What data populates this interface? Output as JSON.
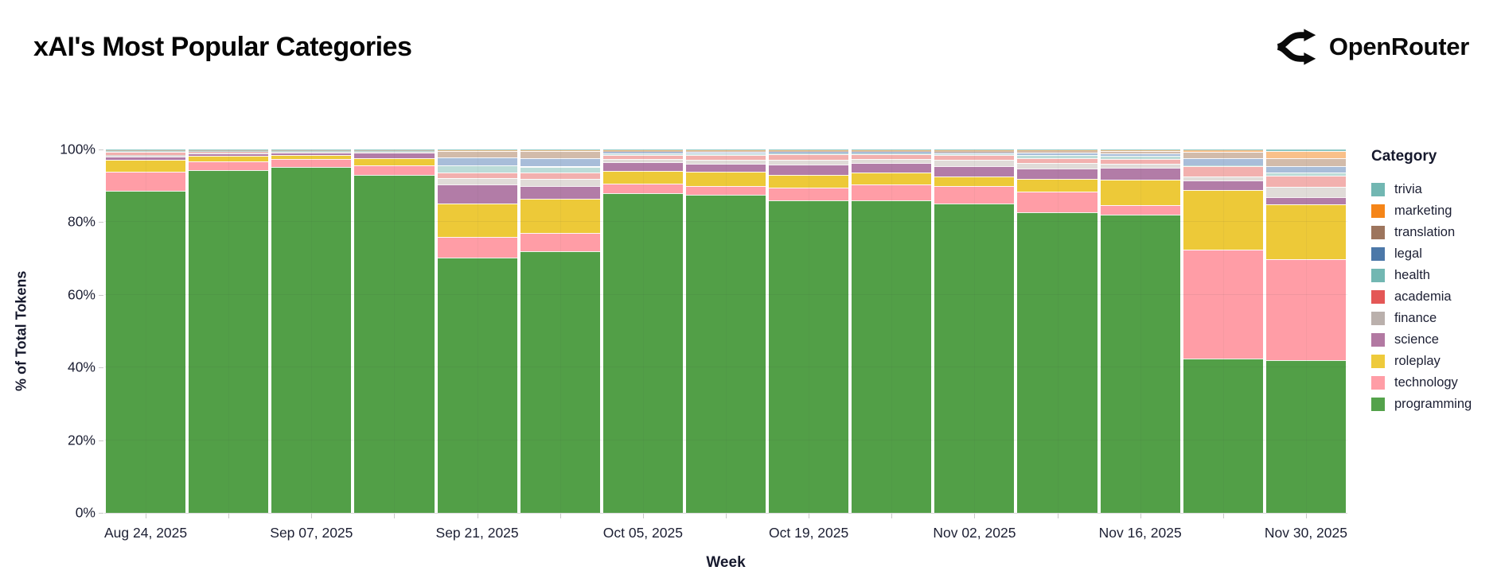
{
  "page": {
    "background": "#ffffff"
  },
  "header": {
    "title": "xAI's Most Popular Categories",
    "brand": {
      "name": "OpenRouter",
      "icon": "openrouter-logo-icon",
      "color": "#0a0a0a"
    }
  },
  "chart_data": {
    "type": "bar",
    "variant": "stacked-100-percent",
    "title": "xAI's Most Popular Categories",
    "xlabel": "Week",
    "ylabel": "% of Total Tokens",
    "ylim": [
      0,
      100
    ],
    "grid": "faint horizontal lines at 20% steps, faint vertical line at each bar center",
    "y_tick_labels": [
      "0%",
      "20%",
      "40%",
      "60%",
      "80%",
      "100%"
    ],
    "x_tick_labels": [
      "Aug 24, 2025",
      "Sep 07, 2025",
      "Sep 21, 2025",
      "Oct 05, 2025",
      "Oct 19, 2025",
      "Nov 02, 2025",
      "Nov 16, 2025",
      "Nov 30, 2025"
    ],
    "weeks": [
      "Aug 24, 2025",
      "Aug 31, 2025",
      "Sep 07, 2025",
      "Sep 14, 2025",
      "Sep 21, 2025",
      "Sep 28, 2025",
      "Oct 05, 2025",
      "Oct 12, 2025",
      "Oct 19, 2025",
      "Oct 26, 2025",
      "Nov 02, 2025",
      "Nov 09, 2025",
      "Nov 16, 2025",
      "Nov 23, 2025",
      "Nov 30, 2025"
    ],
    "legend": {
      "title": "Category",
      "position": "right",
      "items": [
        {
          "label": "trivia",
          "color": "#72b7b2"
        },
        {
          "label": "marketing",
          "color": "#f58518"
        },
        {
          "label": "translation",
          "color": "#9d755d"
        },
        {
          "label": "legal",
          "color": "#4c78a8"
        },
        {
          "label": "health",
          "color": "#72b7b2"
        },
        {
          "label": "academia",
          "color": "#e45756"
        },
        {
          "label": "finance",
          "color": "#bab0ac"
        },
        {
          "label": "science",
          "color": "#b279a2"
        },
        {
          "label": "roleplay",
          "color": "#eeca3b"
        },
        {
          "label": "technology",
          "color": "#ff9da6"
        },
        {
          "label": "programming",
          "color": "#54a24b"
        }
      ]
    },
    "stack_order_bottom_to_top": [
      "programming",
      "technology",
      "roleplay",
      "science",
      "finance",
      "academia",
      "health",
      "legal",
      "translation",
      "marketing",
      "trivia"
    ],
    "series": [
      {
        "name": "programming",
        "bar_color": "#529f47",
        "values": [
          88.7,
          94.4,
          95.1,
          93.0,
          70.2,
          72.0,
          88.0,
          87.5,
          86.0,
          85.9,
          85.1,
          82.8,
          82.0,
          42.4,
          42.0
        ]
      },
      {
        "name": "technology",
        "bar_color": "#ff9da6",
        "values": [
          5.2,
          2.3,
          2.3,
          2.7,
          5.8,
          5.0,
          2.6,
          2.5,
          3.4,
          4.5,
          4.8,
          5.7,
          2.7,
          30.0,
          27.8
        ]
      },
      {
        "name": "roleplay",
        "bar_color": "#edc938",
        "values": [
          3.2,
          1.6,
          1.1,
          1.8,
          9.2,
          9.5,
          3.6,
          3.8,
          3.7,
          3.2,
          2.7,
          3.4,
          7.0,
          16.4,
          15.1
        ]
      },
      {
        "name": "science",
        "bar_color": "#b27ca7",
        "values": [
          0.9,
          0.7,
          0.6,
          1.6,
          5.2,
          3.4,
          2.2,
          2.3,
          2.7,
          2.7,
          2.9,
          2.9,
          3.2,
          2.6,
          2.0
        ]
      },
      {
        "name": "finance",
        "bar_color": "#e0dbd8",
        "values": [
          0.4,
          0.2,
          0.2,
          0.2,
          1.7,
          2.0,
          0.9,
          1.0,
          1.3,
          1.0,
          1.7,
          1.5,
          1.1,
          1.2,
          2.9
        ]
      },
      {
        "name": "academia",
        "bar_color": "#f2b0ae",
        "values": [
          1.0,
          0.3,
          0.2,
          0.2,
          1.6,
          1.8,
          1.2,
          1.3,
          1.5,
          1.3,
          1.3,
          1.3,
          1.4,
          2.8,
          3.0
        ]
      },
      {
        "name": "health",
        "bar_color": "#bcdcd8",
        "values": [
          0.2,
          0.1,
          0.1,
          0.1,
          1.9,
          1.6,
          0.5,
          0.5,
          0.4,
          0.4,
          0.3,
          0.8,
          0.9,
          0.3,
          0.9
        ]
      },
      {
        "name": "legal",
        "bar_color": "#a8bdd9",
        "values": [
          0.1,
          0.1,
          0.1,
          0.1,
          2.3,
          2.2,
          0.4,
          0.5,
          0.4,
          0.4,
          0.4,
          0.8,
          0.7,
          1.8,
          1.7
        ]
      },
      {
        "name": "translation",
        "bar_color": "#d2bbaa",
        "values": [
          0.1,
          0.1,
          0.1,
          0.1,
          1.6,
          2.0,
          0.3,
          0.3,
          0.3,
          0.3,
          0.4,
          0.5,
          0.5,
          1.9,
          2.3
        ]
      },
      {
        "name": "marketing",
        "bar_color": "#f9c089",
        "values": [
          0.1,
          0.1,
          0.1,
          0.1,
          0.3,
          0.3,
          0.1,
          0.1,
          0.1,
          0.1,
          0.1,
          0.1,
          0.2,
          0.3,
          1.9
        ]
      },
      {
        "name": "trivia",
        "bar_color": "#8cc7c3",
        "values": [
          0.1,
          0.1,
          0.1,
          0.1,
          0.2,
          0.2,
          0.2,
          0.2,
          0.2,
          0.2,
          0.3,
          0.2,
          0.3,
          0.3,
          0.4
        ]
      }
    ]
  }
}
